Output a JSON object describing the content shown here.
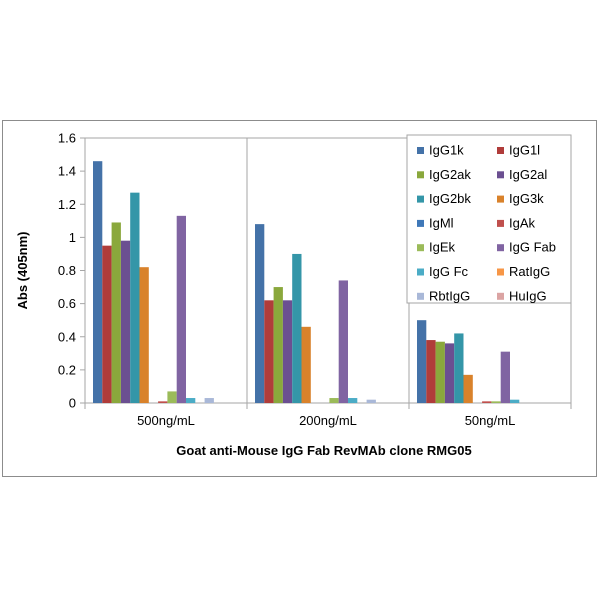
{
  "chart_data": {
    "type": "bar",
    "title": "",
    "xlabel": "Goat anti-Mouse IgG Fab RevMAb clone RMG05",
    "ylabel": "Abs (405nm)",
    "ylim": [
      0,
      1.6
    ],
    "yticks": [
      "0",
      "0.2",
      "0.4",
      "0.6",
      "0.8",
      "1",
      "1.2",
      "1.4",
      "1.6"
    ],
    "categories": [
      "500ng/mL",
      "200ng/mL",
      "50ng/mL"
    ],
    "grid": false,
    "legend_position": "top-right",
    "series": [
      {
        "name": "IgG1k",
        "color": "#4472a8",
        "values": [
          1.46,
          1.08,
          0.5
        ]
      },
      {
        "name": "IgG1l",
        "color": "#b03c3a",
        "values": [
          0.95,
          0.62,
          0.38
        ]
      },
      {
        "name": "IgG2ak",
        "color": "#8aa83c",
        "values": [
          1.09,
          0.7,
          0.37
        ]
      },
      {
        "name": "IgG2al",
        "color": "#6b4f91",
        "values": [
          0.98,
          0.62,
          0.36
        ]
      },
      {
        "name": "IgG2bk",
        "color": "#3496a8",
        "values": [
          1.27,
          0.9,
          0.42
        ]
      },
      {
        "name": "IgG3k",
        "color": "#d9822b",
        "values": [
          0.82,
          0.46,
          0.17
        ]
      },
      {
        "name": "IgMl",
        "color": "#3f78b8",
        "values": [
          0.0,
          0.0,
          0.0
        ]
      },
      {
        "name": "IgAk",
        "color": "#c0504d",
        "values": [
          0.01,
          0.0,
          0.01
        ]
      },
      {
        "name": "IgEk",
        "color": "#9bbb59",
        "values": [
          0.07,
          0.03,
          0.01
        ]
      },
      {
        "name": "IgG Fab",
        "color": "#8064a2",
        "values": [
          1.13,
          0.74,
          0.31
        ]
      },
      {
        "name": "IgG Fc",
        "color": "#4bacc6",
        "values": [
          0.03,
          0.03,
          0.02
        ]
      },
      {
        "name": "RatIgG",
        "color": "#f79646",
        "values": [
          0.0,
          0.0,
          0.0
        ]
      },
      {
        "name": "RbtIgG",
        "color": "#a9b8d8",
        "values": [
          0.03,
          0.02,
          0.0
        ]
      },
      {
        "name": "HuIgG",
        "color": "#dba4a3",
        "values": [
          0.0,
          0.0,
          0.0
        ]
      }
    ]
  }
}
